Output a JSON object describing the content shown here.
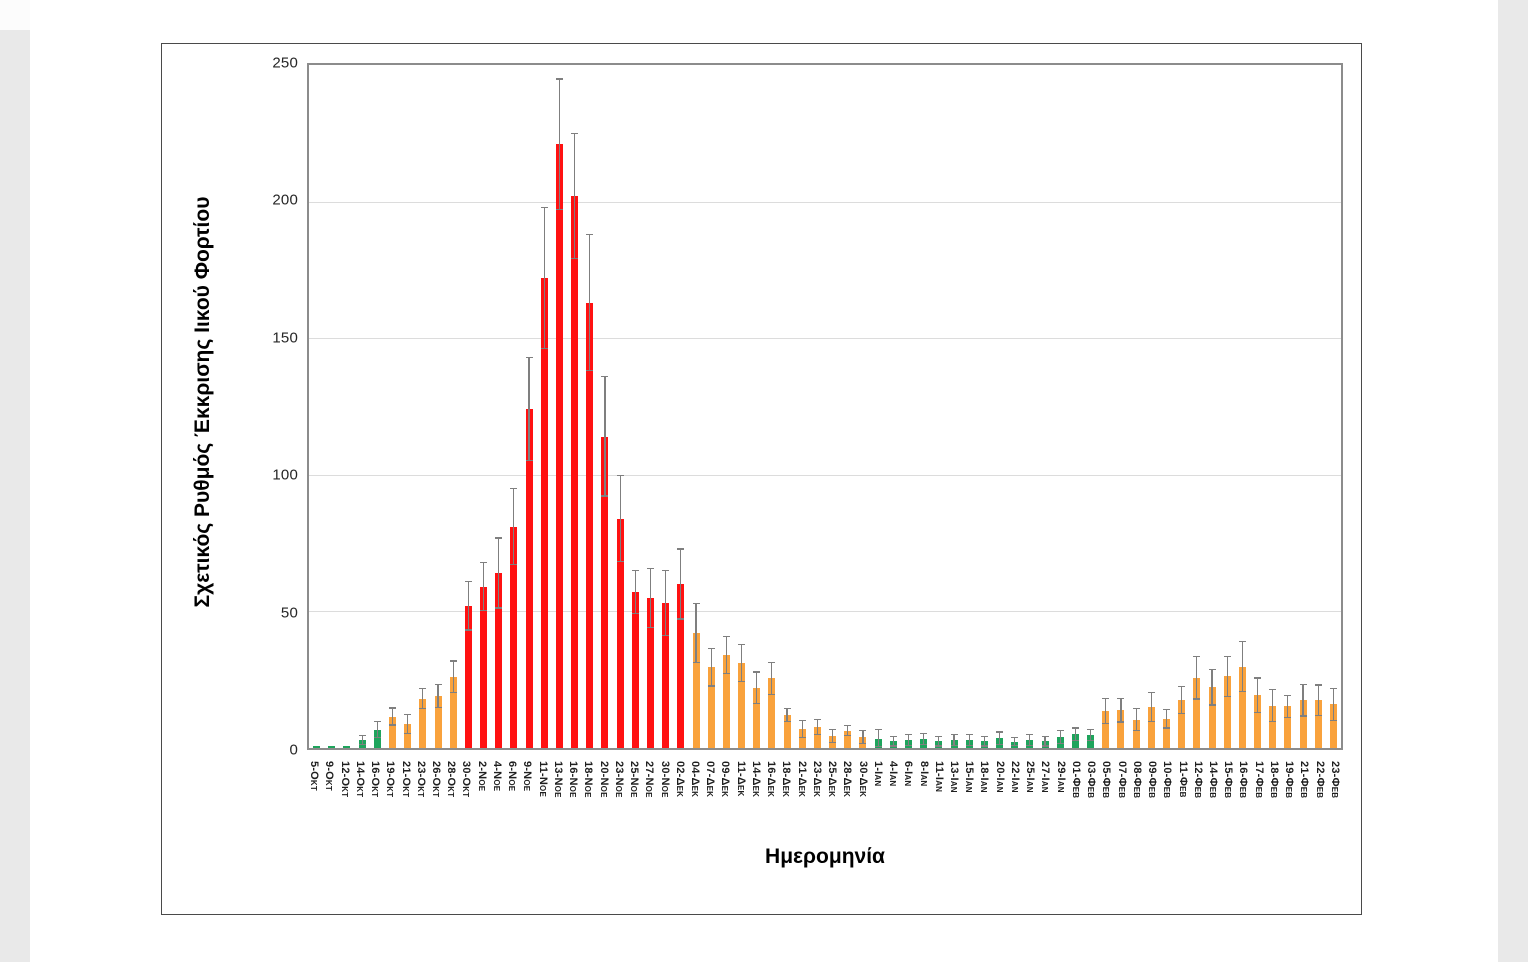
{
  "figure": {
    "y_axis_title": "Σχετικός Ρυθμός Έκκρισης Ιικού Φορτίου",
    "x_axis_title": "Ημερομηνία",
    "y_tick_labels": [
      "0",
      "50",
      "100",
      "150",
      "200",
      "250"
    ]
  },
  "colors": {
    "green": "#1ea45c",
    "orange": "#f9a23c",
    "red": "#ff1111",
    "error_bar": "#7f7f7f",
    "gridline": "#dcdcdc",
    "plot_border": "#8c8c8c"
  },
  "chart_data": {
    "type": "bar",
    "title": "",
    "xlabel": "Ημερομηνία",
    "ylabel": "Σχετικός Ρυθμός Έκκρισης Ιικού Φορτίου",
    "ylim": [
      0,
      250
    ],
    "y_ticks": [
      0,
      50,
      100,
      150,
      200,
      250
    ],
    "grid": true,
    "error_bars": true,
    "legend": "none",
    "categories": [
      "5-Οκτ",
      "9-Οκτ",
      "12-Οκτ",
      "14-Οκτ",
      "16-Οκτ",
      "19-Οκτ",
      "21-Οκτ",
      "23-Οκτ",
      "26-Οκτ",
      "28-Οκτ",
      "30-Οκτ",
      "2-Νοε",
      "4-Νοε",
      "6-Νοε",
      "9-Νοε",
      "11-Νοε",
      "13-Νοε",
      "16-Νοε",
      "18-Νοε",
      "20-Νοε",
      "23-Νοε",
      "25-Νοε",
      "27-Νοε",
      "30-Νοε",
      "02-Δεκ",
      "04-Δεκ",
      "07-Δεκ",
      "09-Δεκ",
      "11-Δεκ",
      "14-Δεκ",
      "16-Δεκ",
      "18-Δεκ",
      "21-Δεκ",
      "23-Δεκ",
      "25-Δεκ",
      "28-Δεκ",
      "30-Δεκ",
      "1-Ιαν",
      "4-Ιαν",
      "6-Ιαν",
      "8-Ιαν",
      "11-Ιαν",
      "13-Ιαν",
      "15-Ιαν",
      "18-Ιαν",
      "20-Ιαν",
      "22-Ιαν",
      "25-Ιαν",
      "27-Ιαν",
      "29-Ιαν",
      "01-Φεβ",
      "03-Φεβ",
      "05-Φεβ",
      "07-Φεβ",
      "08-Φεβ",
      "09-Φεβ",
      "10-Φεβ",
      "11-Φεβ",
      "12-Φεβ",
      "14-Φεβ",
      "15-Φεβ",
      "16-Φεβ",
      "17-Φεβ",
      "18-Φεβ",
      "19-Φεβ",
      "21-Φεβ",
      "22-Φεβ",
      "23-Φεβ"
    ],
    "values": [
      0.8,
      0.8,
      0.8,
      3,
      6.7,
      11.5,
      8.7,
      18,
      19,
      26,
      52,
      59,
      64,
      81,
      124,
      172,
      221,
      202,
      163,
      114,
      84,
      57,
      55,
      53,
      60,
      42,
      29.5,
      34,
      31,
      22,
      25.5,
      12,
      7,
      7.6,
      4.4,
      6.3,
      4,
      3.3,
      2.5,
      2.8,
      3.3,
      2.5,
      2.8,
      2.8,
      2.5,
      3.5,
      2.3,
      2.8,
      2.5,
      4,
      5,
      4.7,
      13.5,
      13.8,
      10.4,
      14.9,
      10.7,
      17.5,
      25.6,
      22.2,
      26.2,
      29.8,
      19.3,
      15.5,
      15.3,
      17.5,
      17.5,
      16
    ],
    "errors": [
      0,
      0,
      0,
      1.8,
      3.2,
      3.3,
      3.7,
      3.9,
      4.5,
      6,
      9,
      9,
      13,
      14,
      19,
      26,
      24,
      23,
      25,
      22,
      16,
      8,
      11,
      12,
      13,
      11,
      7,
      7,
      7,
      6,
      6,
      2.5,
      3.3,
      3,
      2.5,
      2,
      2.5,
      3.7,
      2,
      2.2,
      2.2,
      2,
      2.2,
      2.2,
      2,
      2.5,
      1.7,
      2.2,
      2,
      2.5,
      2.5,
      2.3,
      4.8,
      4.5,
      4.3,
      5.5,
      3.6,
      5.1,
      7.9,
      6.7,
      7.5,
      9.4,
      6.5,
      6.1,
      4.2,
      6,
      5.7,
      6
    ],
    "bar_colors": [
      "g",
      "g",
      "g",
      "g",
      "g",
      "o",
      "o",
      "o",
      "o",
      "o",
      "r",
      "r",
      "r",
      "r",
      "r",
      "r",
      "r",
      "r",
      "r",
      "r",
      "r",
      "r",
      "r",
      "r",
      "r",
      "o",
      "o",
      "o",
      "o",
      "o",
      "o",
      "o",
      "o",
      "o",
      "o",
      "o",
      "o",
      "g",
      "g",
      "g",
      "g",
      "g",
      "g",
      "g",
      "g",
      "g",
      "g",
      "g",
      "g",
      "g",
      "g",
      "g",
      "o",
      "o",
      "o",
      "o",
      "o",
      "o",
      "o",
      "o",
      "o",
      "o",
      "o",
      "o",
      "o",
      "o",
      "o",
      "o"
    ]
  }
}
